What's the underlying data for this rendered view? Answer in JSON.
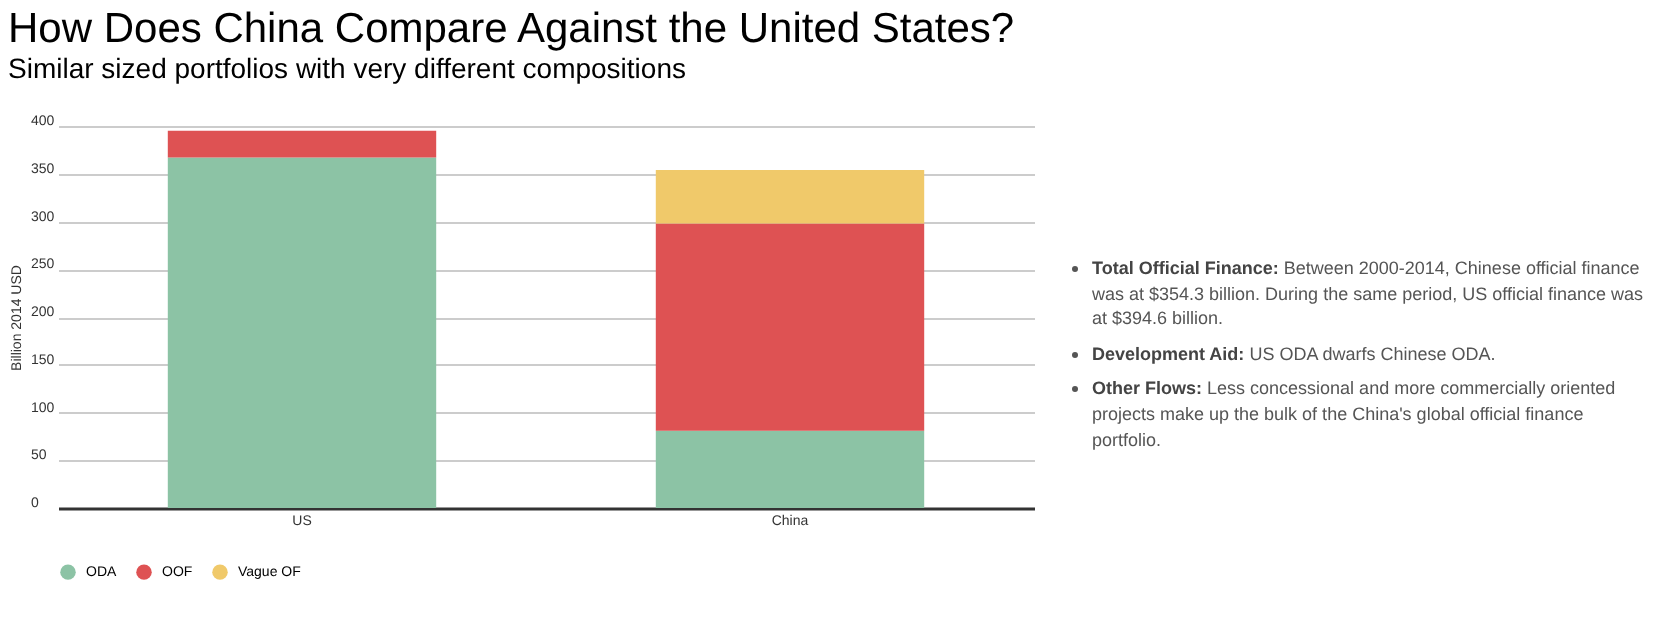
{
  "chart_data": {
    "type": "bar",
    "title": "How Does China Compare Against the United States?",
    "subtitle": "Similar sized portfolios with very different compositions",
    "ylabel": "Billion 2014 USD",
    "categories": [
      "US",
      "China"
    ],
    "stacked": true,
    "series": [
      {
        "name": "ODA",
        "color": "#8cc3a5",
        "values": [
          367,
          81
        ]
      },
      {
        "name": "OOF",
        "color": "#de5253",
        "values": [
          28,
          217
        ]
      },
      {
        "name": "Vague OF",
        "color": "#f0c96a",
        "values": [
          null,
          56
        ]
      }
    ],
    "ylim": [
      0,
      400
    ],
    "yticks": [
      0,
      50,
      100,
      150,
      200,
      250,
      300,
      350,
      400
    ],
    "grid": "y",
    "legend": "bottom",
    "marker": "circle",
    "annotations": [
      "Total Official Finance: Between 2000-2014, Chinese official finance was at $354.3 billion. During the same period, US official finance was at $394.6 billion.",
      "Development Aid: US ODA dwarfs Chinese ODA.",
      "Other Flows: Less concessional and more commercially oriented projects make up the bulk of the China's global official finance portfolio."
    ]
  }
}
